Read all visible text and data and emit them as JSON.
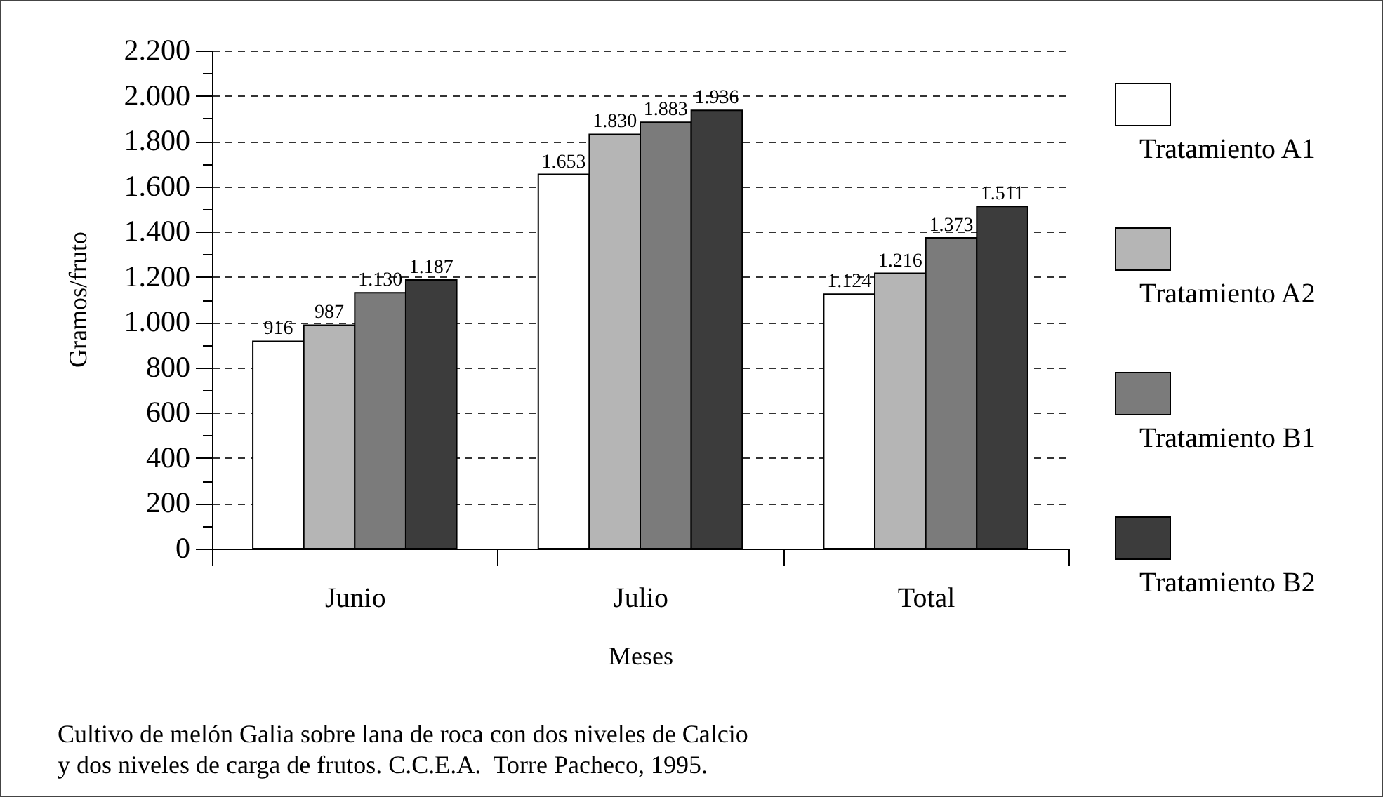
{
  "chart_data": {
    "type": "bar",
    "xlabel": "Meses",
    "ylabel": "Gramos/fruto",
    "categories": [
      "Junio",
      "Julio",
      "Total"
    ],
    "series": [
      {
        "name": "Tratamiento A1",
        "color": "#ffffff",
        "values": [
          916,
          1653,
          1124
        ],
        "value_labels": [
          "916",
          "1.653",
          "1.124"
        ]
      },
      {
        "name": "Tratamiento A2",
        "color": "#b5b5b5",
        "values": [
          987,
          1830,
          1216
        ],
        "value_labels": [
          "987",
          "1.830",
          "1.216"
        ]
      },
      {
        "name": "Tratamiento B1",
        "color": "#7b7b7b",
        "values": [
          1130,
          1883,
          1373
        ],
        "value_labels": [
          "1.130",
          "1.883",
          "1.373"
        ]
      },
      {
        "name": "Tratamiento B2",
        "color": "#3c3c3c",
        "values": [
          1187,
          1936,
          1511
        ],
        "value_labels": [
          "1.187",
          "1.936",
          "1.511"
        ]
      }
    ],
    "ylim": [
      0,
      2200
    ],
    "yticks": [
      0,
      {
        "value": 100,
        "label": null
      },
      {
        "value": 200,
        "label": "200"
      },
      {
        "value": 300,
        "label": null
      },
      {
        "value": 400,
        "label": "400"
      },
      {
        "value": 500,
        "label": null
      },
      {
        "value": 600,
        "label": "600"
      },
      {
        "value": 700,
        "label": null
      },
      {
        "value": 800,
        "label": "800"
      },
      {
        "value": 900,
        "label": null
      },
      {
        "value": 1000,
        "label": "1.000"
      },
      {
        "value": 1100,
        "label": null
      },
      {
        "value": 1200,
        "label": "1.200"
      },
      {
        "value": 1300,
        "label": null
      },
      {
        "value": 1400,
        "label": "1.400"
      },
      {
        "value": 1500,
        "label": null
      },
      {
        "value": 1600,
        "label": "1.600"
      },
      {
        "value": 1700,
        "label": null
      },
      {
        "value": 1800,
        "label": "1.800"
      },
      {
        "value": 1900,
        "label": null
      },
      {
        "value": 2000,
        "label": "2.000"
      },
      {
        "value": 2100,
        "label": null
      },
      {
        "value": 2200,
        "label": "2.200"
      }
    ],
    "grid": "y",
    "legend": "right",
    "annotations": [
      "Cultivo de melón Galia sobre lana de roca con dos niveles de Calcio y dos niveles de carga de frutos. C.C.E.A.  Torre Pacheco, 1995."
    ]
  }
}
